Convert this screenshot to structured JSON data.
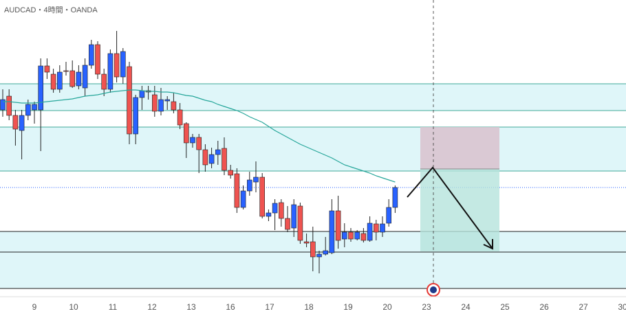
{
  "chart_data": {
    "type": "candlestick",
    "title": "AUDCAD・4時間・OANDA",
    "x_labels": [
      "9",
      "10",
      "11",
      "12",
      "13",
      "16",
      "17",
      "18",
      "19",
      "20",
      "23",
      "24",
      "25",
      "26",
      "27",
      "30"
    ],
    "ylim": [
      0,
      420
    ],
    "up_color": "#2962ff",
    "down_color": "#ef5350",
    "ma_color": "#26a69a",
    "candles": [
      [
        260,
        290,
        250,
        275
      ],
      [
        280,
        290,
        245,
        252
      ],
      [
        252,
        260,
        208,
        232
      ],
      [
        230,
        260,
        188,
        252
      ],
      [
        252,
        275,
        245,
        268
      ],
      [
        260,
        272,
        240,
        268
      ],
      [
        260,
        335,
        200,
        324
      ],
      [
        324,
        335,
        305,
        315
      ],
      [
        312,
        320,
        285,
        290
      ],
      [
        290,
        325,
        285,
        315
      ],
      [
        317,
        330,
        310,
        316
      ],
      [
        317,
        332,
        292,
        294
      ],
      [
        295,
        325,
        290,
        315
      ],
      [
        292,
        335,
        280,
        325
      ],
      [
        325,
        362,
        320,
        355
      ],
      [
        355,
        360,
        305,
        312
      ],
      [
        312,
        320,
        280,
        290
      ],
      [
        290,
        348,
        285,
        342
      ],
      [
        342,
        375,
        300,
        308
      ],
      [
        308,
        350,
        298,
        345
      ],
      [
        323,
        330,
        210,
        225
      ],
      [
        225,
        282,
        210,
        278
      ],
      [
        278,
        295,
        260,
        288
      ],
      [
        288,
        295,
        275,
        286
      ],
      [
        282,
        295,
        250,
        258
      ],
      [
        258,
        292,
        252,
        275
      ],
      [
        273,
        280,
        260,
        275
      ],
      [
        272,
        285,
        255,
        260
      ],
      [
        260,
        270,
        232,
        238
      ],
      [
        240,
        242,
        190,
        212
      ],
      [
        212,
        225,
        205,
        220
      ],
      [
        220,
        225,
        168,
        202
      ],
      [
        202,
        210,
        170,
        180
      ],
      [
        182,
        205,
        175,
        195
      ],
      [
        195,
        215,
        180,
        202
      ],
      [
        204,
        220,
        165,
        172
      ],
      [
        172,
        180,
        160,
        165
      ],
      [
        167,
        175,
        110,
        118
      ],
      [
        118,
        150,
        115,
        142
      ],
      [
        142,
        170,
        135,
        158
      ],
      [
        155,
        185,
        140,
        162
      ],
      [
        162,
        168,
        102,
        105
      ],
      [
        105,
        115,
        98,
        110
      ],
      [
        110,
        130,
        85,
        124
      ],
      [
        125,
        130,
        90,
        102
      ],
      [
        102,
        120,
        82,
        86
      ],
      [
        88,
        130,
        75,
        122
      ],
      [
        120,
        125,
        65,
        70
      ],
      [
        68,
        80,
        60,
        66
      ],
      [
        68,
        90,
        25,
        46
      ],
      [
        46,
        55,
        22,
        50
      ],
      [
        50,
        75,
        48,
        55
      ],
      [
        52,
        130,
        50,
        113
      ],
      [
        113,
        135,
        58,
        70
      ],
      [
        72,
        95,
        60,
        82
      ],
      [
        82,
        88,
        68,
        72
      ],
      [
        72,
        85,
        70,
        82
      ],
      [
        80,
        88,
        67,
        70
      ],
      [
        70,
        105,
        68,
        95
      ],
      [
        94,
        100,
        70,
        82
      ],
      [
        82,
        105,
        75,
        94
      ],
      [
        95,
        130,
        90,
        118
      ],
      [
        118,
        150,
        110,
        147
      ]
    ],
    "ma": [
      272,
      272,
      271,
      270,
      270,
      270,
      271,
      272,
      273,
      274,
      275,
      276,
      278,
      280,
      281,
      282,
      284,
      286,
      287,
      288,
      289,
      289,
      288,
      287,
      287,
      286,
      286,
      285,
      283,
      281,
      280,
      277,
      274,
      272,
      268,
      265,
      262,
      259,
      255,
      250,
      246,
      242,
      236,
      230,
      225,
      220,
      215,
      210,
      206,
      202,
      198,
      194,
      190,
      185,
      180,
      177,
      174,
      171,
      168,
      164,
      161,
      158,
      155
    ]
  }
}
